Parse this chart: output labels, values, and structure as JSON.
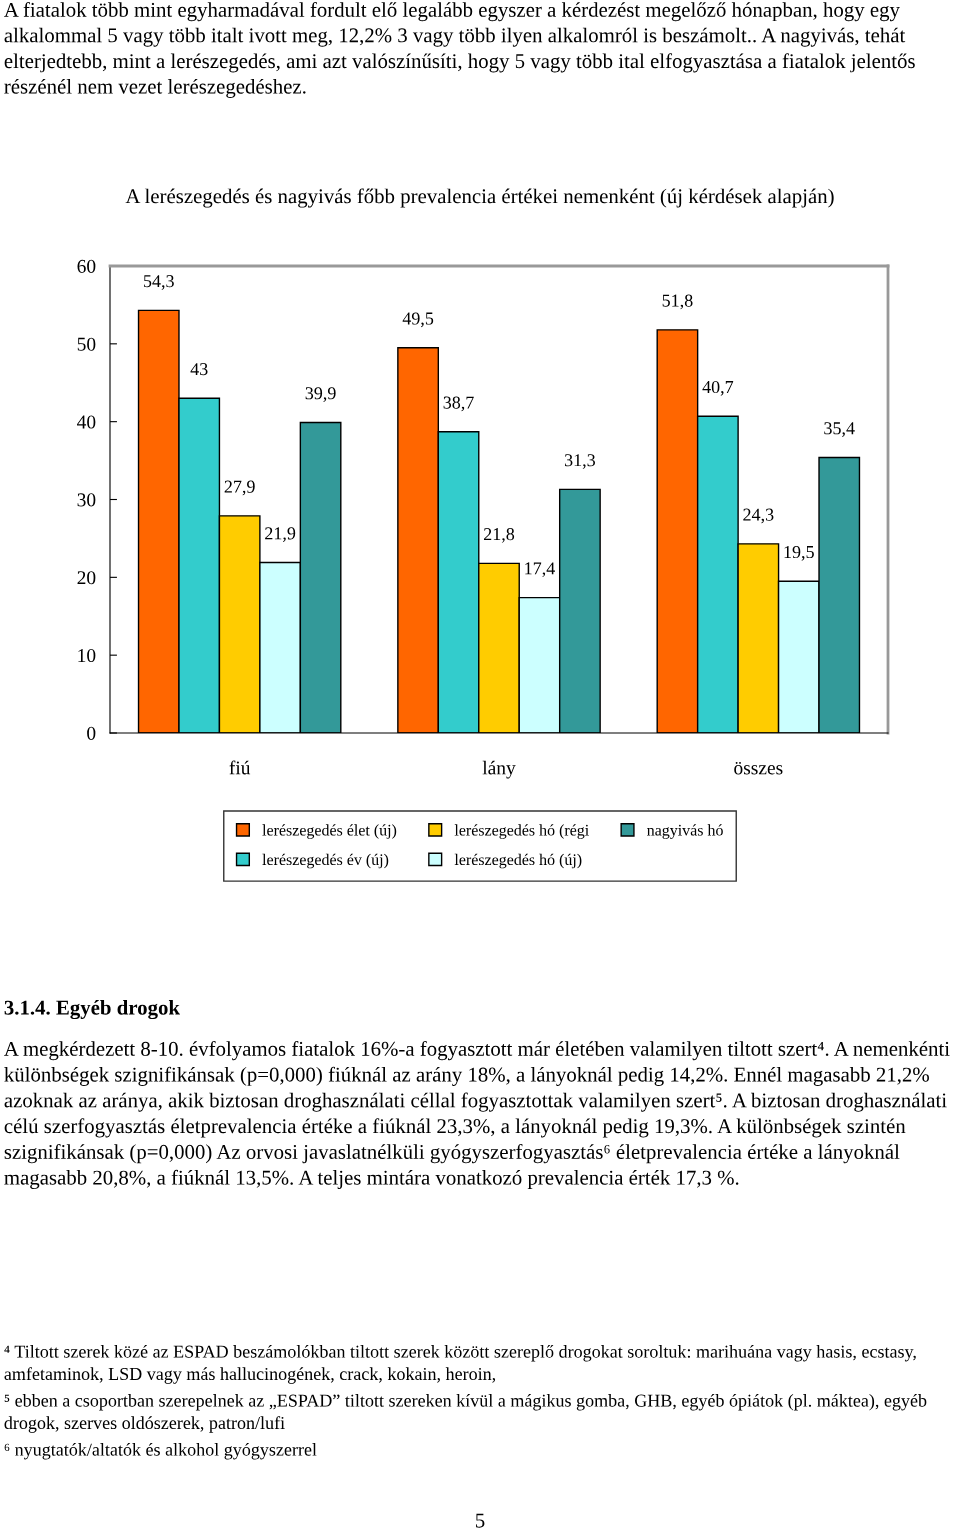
{
  "chart_data": {
    "type": "bar",
    "title": "A lerészegedés és nagyivás főbb prevalencia értékei nemenként (új kérdések alapján)",
    "categories": [
      "fiú",
      "lány",
      "összes"
    ],
    "series": [
      {
        "name": "lerészegedés élet (új)",
        "color": "#ff6600",
        "values": [
          54.3,
          49.5,
          51.8
        ],
        "value_labels": [
          "54,3",
          "49,5",
          "51,8"
        ]
      },
      {
        "name": "lerészegedés év (új)",
        "color": "#33cccc",
        "values": [
          43,
          38.7,
          40.7
        ],
        "value_labels": [
          "43",
          "38,7",
          "40,7"
        ]
      },
      {
        "name": "lerészegedés hó (régi",
        "color": "#ffcc00",
        "values": [
          27.9,
          21.8,
          24.3
        ],
        "value_labels": [
          "27,9",
          "21,8",
          "24,3"
        ]
      },
      {
        "name": "lerészegedés hó (új)",
        "color": "#ccffff",
        "values": [
          21.9,
          17.4,
          19.5
        ],
        "value_labels": [
          "21,9",
          "17,4",
          "19,5"
        ]
      },
      {
        "name": "nagyivás hó",
        "color": "#339999",
        "values": [
          39.9,
          31.3,
          35.4
        ],
        "value_labels": [
          "39,9",
          "31,3",
          "35,4"
        ]
      }
    ],
    "ylim": [
      0,
      60
    ],
    "yticks": [
      0,
      10,
      20,
      30,
      40,
      50,
      60
    ],
    "grid": false,
    "legend": "bottom",
    "annotations": [
      "A fiatalok több mint egyharmadával fordult elő legalább egyszer a kérdezést megelőző hónapban, hogy egy alkalommal 5 vagy több italt ivott meg, 12,2% 3 vagy több ilyen alkalomról is beszámolt.. A nagyivás, tehát elterjedtebb, mint a lerészegedés, ami azt valószínűsíti, hogy 5 vagy több ital elfogyasztása a fiatalok jelentős részénél nem vezet lerészegedéshez.",
      "3.1.4. Egyéb drogok",
      "A megkérdezett 8-10. évfolyamos fiatalok 16%-a fogyasztott már életében valamilyen tiltott szert⁴. A nemenkénti különbségek szignifikánsak (p=0,000) fiúknál az arány 18%, a lányoknál pedig 14,2%. Ennél magasabb 21,2% azoknak az aránya, akik biztosan droghasználati céllal fogyasztottak valamilyen szert⁵. A biztosan droghasználati célú szerfogyasztás életprevalencia értéke a fiúknál 23,3%, a lányoknál pedig 19,3%. A különbségek szintén szignifikánsak (p=0,000) Az orvosi javaslatnélküli gyógyszerfogyasztás⁶ életprevalencia értéke a lányoknál magasabb 20,8%, a fiúknál 13,5%. A teljes mintára vonatkozó prevalencia érték 17,3 %.",
      "⁴ Tiltott szerek közé az ESPAD beszámolókban tiltott szerek között szereplő drogokat soroltuk: marihuána vagy hasis, ecstasy, amfetaminok, LSD vagy más hallucinogének, crack, kokain, heroin,",
      "⁵ ebben a csoportban szerepelnek az „ESPAD” tiltott szereken kívül a mágikus gomba, GHB, egyéb ópiátok (pl. máktea), egyéb drogok, szerves oldószerek, patron/lufi",
      "⁶ nyugtatók/altatók és alkohol gyógyszerrel",
      "5"
    ]
  }
}
